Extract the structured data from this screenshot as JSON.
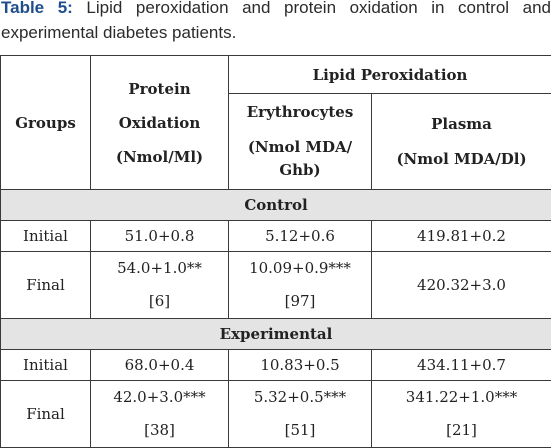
{
  "caption": {
    "label": "Table 5:",
    "line1_text": "Lipid peroxidation and protein oxidation in control and",
    "line2_text": "experimental diabetes patients."
  },
  "table": {
    "headers": {
      "groups": "Groups",
      "protein_line1": "Protein",
      "protein_line2": "Oxidation",
      "protein_line3": "(Nmol/Ml)",
      "lipid": "Lipid Peroxidation",
      "erythrocytes_line1": "Erythrocytes",
      "erythrocytes_line2": "(Nmol MDA/",
      "erythrocytes_line3": "Ghb)",
      "plasma_line1": "Plasma",
      "plasma_line2": "(Nmol MDA/Dl)"
    },
    "sections": [
      {
        "title": "Control",
        "rows": [
          {
            "group": "Initial",
            "protein": "51.0+0.8",
            "protein_ref": "",
            "erythrocytes": "5.12+0.6",
            "erythrocytes_ref": "",
            "plasma": "419.81+0.2",
            "plasma_ref": ""
          },
          {
            "group": "Final",
            "protein": "54.0+1.0**",
            "protein_ref": "[6]",
            "erythrocytes": "10.09+0.9***",
            "erythrocytes_ref": "[97]",
            "plasma": "420.32+3.0",
            "plasma_ref": ""
          }
        ]
      },
      {
        "title": "Experimental",
        "rows": [
          {
            "group": "Initial",
            "protein": "68.0+0.4",
            "protein_ref": "",
            "erythrocytes": "10.83+0.5",
            "erythrocytes_ref": "",
            "plasma": "434.11+0.7",
            "plasma_ref": ""
          },
          {
            "group": "Final",
            "protein": "42.0+3.0***",
            "protein_ref": "[38]",
            "erythrocytes": "5.32+0.5***",
            "erythrocytes_ref": "[51]",
            "plasma": "341.22+1.0***",
            "plasma_ref": "[21]"
          }
        ]
      }
    ]
  }
}
